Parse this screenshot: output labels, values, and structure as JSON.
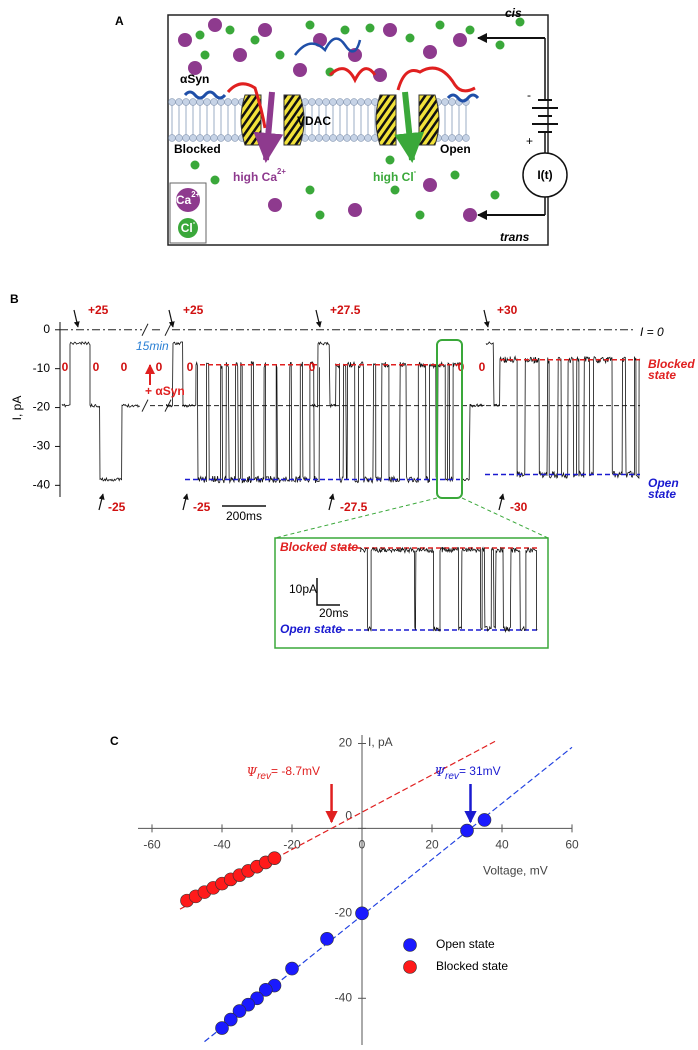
{
  "panel_a": {
    "label": "A",
    "cis": "cis",
    "trans": "trans",
    "asyn": "αSyn",
    "vdac": "VDAC",
    "blocked": "Blocked",
    "open": "Open",
    "high_ca": {
      "text": "high Ca",
      "sup": "2+"
    },
    "high_cl": {
      "text": "high Cl",
      "sup": "-"
    },
    "current": "I(t)",
    "minus": "-",
    "plus": "+",
    "legend_ca": {
      "text": "Ca",
      "sup": "2+"
    },
    "legend_cl": {
      "text": "Cl",
      "sup": "-"
    }
  },
  "panel_b": {
    "label": "B",
    "ylabel": "I, pA",
    "ylim": [
      2,
      -43
    ],
    "yticks": [
      0,
      -10,
      -20,
      -30,
      -40
    ],
    "levels": {
      "zero_current": 0,
      "zero_voltage": -19.5,
      "positive": -3.5,
      "blocked": -9,
      "open": -38.5
    },
    "zero_current_label": "I = 0",
    "blocked_label": [
      "Blocked",
      "state"
    ],
    "open_label": [
      "Open",
      "state"
    ],
    "steps_up": [
      "+25",
      "+25",
      "+27.5",
      "+30"
    ],
    "steps_down": [
      "-25",
      "-25",
      "-27.5",
      "-30"
    ],
    "zero_labels": [
      "0",
      "0",
      "0",
      "0",
      "0",
      "0",
      "0",
      "0"
    ],
    "wait": "15min",
    "addition": "+ αSyn",
    "time_scale": "200ms",
    "inset": {
      "blocked": "Blocked state",
      "open": "Open state",
      "current_scale": "10pA",
      "time_scale": "20ms"
    }
  },
  "chart_data": {
    "type": "scatter",
    "title": "C",
    "xlabel": "Voltage, mV",
    "ylabel": "I, pA",
    "xlim": [
      -64,
      60
    ],
    "ylim": [
      -51,
      22
    ],
    "xticks": [
      -60,
      -40,
      -20,
      0,
      20,
      40,
      60
    ],
    "yticks": [
      20,
      0,
      -20,
      -40
    ],
    "legend": "lower right",
    "series": [
      {
        "name": "Open state",
        "color": "#1a1aff",
        "x": [
          35,
          30,
          0,
          -10,
          -20,
          -25,
          -27.5,
          -30,
          -32.5,
          -35,
          -37.5,
          -40
        ],
        "values": [
          2,
          -0.5,
          -20,
          -26,
          -33,
          -37,
          -38,
          -40,
          -41.5,
          -43,
          -45,
          -47
        ]
      },
      {
        "name": "Blocked state",
        "color": "#ff1a1a",
        "x": [
          -50,
          -47.5,
          -45,
          -42.5,
          -40,
          -37.5,
          -35,
          -32.5,
          -30,
          -27.5,
          -25
        ],
        "values": [
          -17,
          -16,
          -15,
          -14,
          -13,
          -12,
          -11,
          -10,
          -9,
          -8,
          -7
        ]
      }
    ],
    "fits": [
      {
        "color": "#e02020",
        "x": [
          -52,
          38
        ],
        "values": [
          -19,
          20.5
        ]
      },
      {
        "color": "#2040e0",
        "x": [
          -45,
          60
        ],
        "values": [
          -50.2,
          19.1
        ]
      }
    ],
    "annotations": [
      {
        "symbol": "Ψ",
        "sub": "rev",
        "text": "= -8.7mV",
        "x": -8.7,
        "color": "#e02020"
      },
      {
        "symbol": "Ψ",
        "sub": "rev",
        "text": "= 31mV",
        "x": 31,
        "color": "#1a1ad0"
      }
    ]
  }
}
